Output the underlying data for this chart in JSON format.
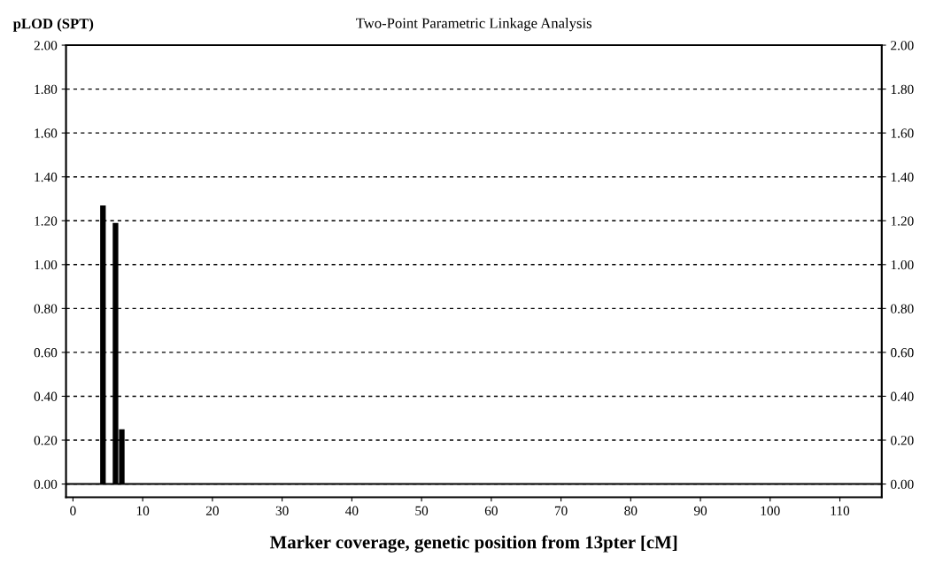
{
  "chart_data": {
    "type": "bar",
    "title": "Two-Point Parametric Linkage Analysis",
    "ylabel": "pLOD (SPT)",
    "xlabel": "Marker coverage, genetic position from 13pter [cM]",
    "x": [
      4.3,
      6.1,
      7.0
    ],
    "values": [
      1.27,
      1.19,
      0.25
    ],
    "color": "#000000",
    "xlim": [
      -1,
      116
    ],
    "xticks": [
      0,
      10,
      20,
      30,
      40,
      50,
      60,
      70,
      80,
      90,
      100,
      110
    ],
    "ylim": [
      -0.06,
      2.0
    ],
    "yticks": [
      {
        "value": 0,
        "label": "0.00"
      },
      {
        "value": 0.2,
        "label": "0.20"
      },
      {
        "value": 0.4,
        "label": "0.40"
      },
      {
        "value": 0.6,
        "label": "0.60"
      },
      {
        "value": 0.8,
        "label": "0.80"
      },
      {
        "value": 1.0,
        "label": "1.00"
      },
      {
        "value": 1.2,
        "label": "1.20"
      },
      {
        "value": 1.4,
        "label": "1.40"
      },
      {
        "value": 1.6,
        "label": "1.60"
      },
      {
        "value": 1.8,
        "label": "1.80"
      },
      {
        "value": 2.0,
        "label": "2.00"
      }
    ],
    "y2lim": [
      -0.06,
      2.0
    ],
    "y2ticks": [
      {
        "value": 0,
        "label": "0.00"
      },
      {
        "value": 0.2,
        "label": "0.20"
      },
      {
        "value": 0.4,
        "label": "0.40"
      },
      {
        "value": 0.6,
        "label": "0.60"
      },
      {
        "value": 0.8,
        "label": "0.80"
      },
      {
        "value": 1.0,
        "label": "1.00"
      },
      {
        "value": 1.2,
        "label": "1.20"
      },
      {
        "value": 1.4,
        "label": "1.40"
      },
      {
        "value": 1.6,
        "label": "1.60"
      },
      {
        "value": 1.8,
        "label": "1.80"
      },
      {
        "value": 2.0,
        "label": "2.00"
      }
    ],
    "ref_lines": [
      {
        "axis": "y",
        "value": 0,
        "color": "#000000",
        "line_style": "solid"
      }
    ],
    "grid": "y"
  }
}
